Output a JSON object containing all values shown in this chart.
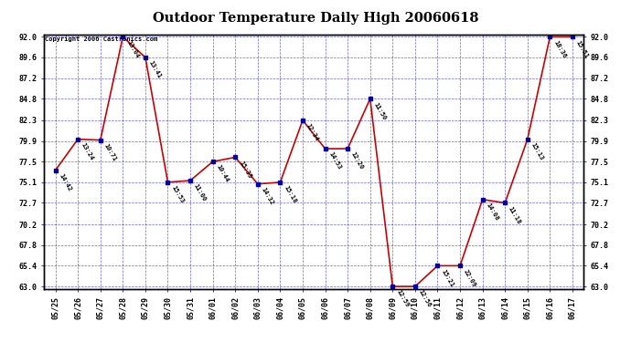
{
  "title": "Outdoor Temperature Daily High 20060618",
  "copyright": "Copyright 2006 Castronics.com",
  "x_labels": [
    "05/25",
    "05/26",
    "05/27",
    "05/28",
    "05/29",
    "05/30",
    "05/31",
    "06/01",
    "06/02",
    "06/03",
    "06/04",
    "06/05",
    "06/06",
    "06/07",
    "06/08",
    "06/09",
    "06/10",
    "06/11",
    "06/12",
    "06/13",
    "06/14",
    "06/15",
    "06/16",
    "06/17"
  ],
  "y_values": [
    76.5,
    80.1,
    80.0,
    92.0,
    89.6,
    75.1,
    75.3,
    77.5,
    78.0,
    74.9,
    75.1,
    82.3,
    79.0,
    79.0,
    84.8,
    63.0,
    63.0,
    65.4,
    65.4,
    73.1,
    72.7,
    80.1,
    92.0,
    92.0
  ],
  "time_labels": [
    "14:42",
    "13:24",
    "10:71",
    "13:04",
    "13:41",
    "15:53",
    "11:00",
    "10:44",
    "15:35",
    "14:32",
    "15:18",
    "12:34",
    "14:53",
    "12:20",
    "11:50",
    "12:59",
    "12:56",
    "15:21",
    "22:09",
    "14:08",
    "11:18",
    "15:13",
    "18:36",
    "15:51"
  ],
  "y_min": 63.0,
  "y_max": 92.0,
  "y_ticks": [
    63.0,
    65.4,
    67.8,
    70.2,
    72.7,
    75.1,
    77.5,
    79.9,
    82.3,
    84.8,
    87.2,
    89.6,
    92.0
  ],
  "line_color": "#cc0000",
  "marker_color": "#0000aa",
  "bg_color": "#ffffff",
  "plot_bg": "#ffffff",
  "grid_color": "#0000cc",
  "title_color": "#000000",
  "copyright_color": "#000000",
  "label_fontsize": 6.0,
  "title_fontsize": 10.5
}
